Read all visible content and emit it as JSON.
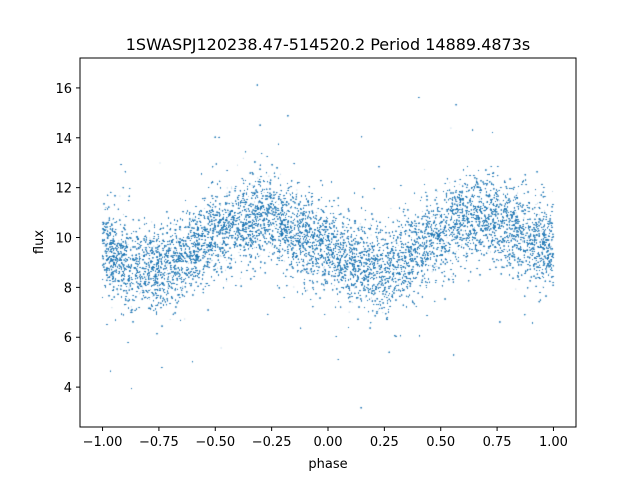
{
  "chart_data": {
    "type": "scatter",
    "title": "1SWASPJ120238.47-514520.2 Period 14889.4873s",
    "xlabel": "phase",
    "ylabel": "flux",
    "xlim": [
      -1.1,
      1.1
    ],
    "ylim": [
      2.4,
      17.2
    ],
    "xticks": [
      -1.0,
      -0.75,
      -0.5,
      -0.25,
      0.0,
      0.25,
      0.5,
      0.75,
      1.0
    ],
    "xtick_labels": [
      "−1.00",
      "−0.75",
      "−0.50",
      "−0.25",
      "0.00",
      "0.25",
      "0.50",
      "0.75",
      "1.00"
    ],
    "yticks": [
      4,
      6,
      8,
      10,
      12,
      14,
      16
    ],
    "ytick_labels": [
      "4",
      "6",
      "8",
      "10",
      "12",
      "14",
      "16"
    ],
    "grid": false,
    "legend": "none",
    "point_color": "#1f77b4",
    "x_range": [
      -1.0,
      1.0
    ],
    "y_range_observed": [
      3.0,
      16.5
    ],
    "trend": {
      "phase": [
        -1.0,
        -0.9,
        -0.8,
        -0.75,
        -0.7,
        -0.6,
        -0.5,
        -0.4,
        -0.3,
        -0.25,
        -0.2,
        -0.1,
        0.0,
        0.1,
        0.2,
        0.25,
        0.3,
        0.4,
        0.5,
        0.6,
        0.7,
        0.75,
        0.8,
        0.9,
        1.0
      ],
      "flux": [
        9.6,
        9.0,
        8.7,
        8.7,
        8.9,
        9.5,
        10.1,
        10.6,
        10.8,
        10.7,
        10.5,
        10.0,
        9.5,
        9.0,
        8.7,
        8.7,
        8.9,
        9.5,
        10.1,
        10.6,
        10.8,
        10.7,
        10.5,
        10.0,
        9.6
      ]
    },
    "scatter_spread_sd": 0.85
  }
}
